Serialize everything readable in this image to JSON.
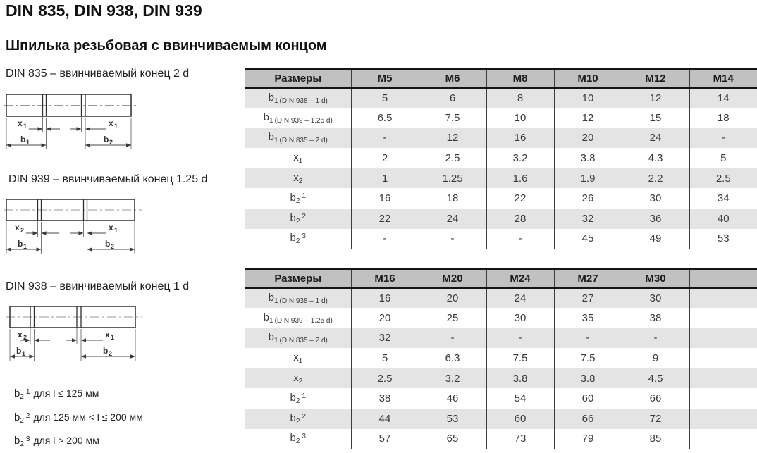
{
  "page": {
    "title": "DIN 835, DIN 938, DIN 939",
    "subtitle": "Шпилька резьбовая с ввинчиваемым концом"
  },
  "drawings": [
    {
      "caption": "DIN 835 – ввинчиваемый конец 2 d",
      "xl_main": "x",
      "xl_sub": "1",
      "xr_main": "x",
      "xr_sub": "1",
      "bl_main": "b",
      "bl_sub": "1",
      "br_main": "b",
      "br_sub": "2"
    },
    {
      "caption": "DIN 939 – ввинчиваемый конец 1.25 d",
      "xl_main": "x",
      "xl_sub": "2",
      "xr_main": "x",
      "xr_sub": "1",
      "bl_main": "b",
      "bl_sub": "1",
      "br_main": "b",
      "br_sub": "2"
    },
    {
      "caption": "DIN 938 – ввинчиваемый конец 1 d",
      "xl_main": "x",
      "xl_sub": "2",
      "xr_main": "x",
      "xr_sub": "1",
      "bl_main": "b",
      "bl_sub": "1",
      "br_main": "b",
      "br_sub": "2"
    }
  ],
  "tables": [
    {
      "header": [
        "Размеры",
        "M5",
        "M6",
        "M8",
        "M10",
        "M12",
        "M14"
      ],
      "rows": [
        {
          "label": {
            "base": "b",
            "sub": "1",
            "note": "(DIN 938 – 1 d)",
            "sup": ""
          },
          "values": [
            "5",
            "6",
            "8",
            "10",
            "12",
            "14"
          ]
        },
        {
          "label": {
            "base": "b",
            "sub": "1",
            "note": "(DIN 939 – 1.25 d)",
            "sup": ""
          },
          "values": [
            "6.5",
            "7.5",
            "10",
            "12",
            "15",
            "18"
          ]
        },
        {
          "label": {
            "base": "b",
            "sub": "1",
            "note": "(DIN 835 – 2 d)",
            "sup": ""
          },
          "values": [
            "-",
            "12",
            "16",
            "20",
            "24",
            "-"
          ]
        },
        {
          "label": {
            "base": "x",
            "sub": "1",
            "note": "",
            "sup": ""
          },
          "values": [
            "2",
            "2.5",
            "3.2",
            "3.8",
            "4.3",
            "5"
          ]
        },
        {
          "label": {
            "base": "x",
            "sub": "2",
            "note": "",
            "sup": ""
          },
          "values": [
            "1",
            "1.25",
            "1.6",
            "1.9",
            "2.2",
            "2.5"
          ]
        },
        {
          "label": {
            "base": "b",
            "sub": "2",
            "note": "",
            "sup": "1"
          },
          "values": [
            "16",
            "18",
            "22",
            "26",
            "30",
            "34"
          ]
        },
        {
          "label": {
            "base": "b",
            "sub": "2",
            "note": "",
            "sup": "2"
          },
          "values": [
            "22",
            "24",
            "28",
            "32",
            "36",
            "40"
          ]
        },
        {
          "label": {
            "base": "b",
            "sub": "2",
            "note": "",
            "sup": "3"
          },
          "values": [
            "-",
            "-",
            "-",
            "45",
            "49",
            "53"
          ]
        }
      ]
    },
    {
      "header": [
        "Размеры",
        "M16",
        "M20",
        "M24",
        "M27",
        "M30",
        ""
      ],
      "rows": [
        {
          "label": {
            "base": "b",
            "sub": "1",
            "note": "(DIN 938 – 1 d)",
            "sup": ""
          },
          "values": [
            "16",
            "20",
            "24",
            "27",
            "30",
            ""
          ]
        },
        {
          "label": {
            "base": "b",
            "sub": "1",
            "note": "(DIN 939 – 1.25 d)",
            "sup": ""
          },
          "values": [
            "20",
            "25",
            "30",
            "35",
            "38",
            ""
          ]
        },
        {
          "label": {
            "base": "b",
            "sub": "1",
            "note": "(DIN 835 – 2 d)",
            "sup": ""
          },
          "values": [
            "32",
            "-",
            "-",
            "-",
            "-",
            ""
          ]
        },
        {
          "label": {
            "base": "x",
            "sub": "1",
            "note": "",
            "sup": ""
          },
          "values": [
            "5",
            "6.3",
            "7.5",
            "7.5",
            "9",
            ""
          ]
        },
        {
          "label": {
            "base": "x",
            "sub": "2",
            "note": "",
            "sup": ""
          },
          "values": [
            "2.5",
            "3.2",
            "3.8",
            "3.8",
            "4.5",
            ""
          ]
        },
        {
          "label": {
            "base": "b",
            "sub": "2",
            "note": "",
            "sup": "1"
          },
          "values": [
            "38",
            "46",
            "54",
            "60",
            "66",
            ""
          ]
        },
        {
          "label": {
            "base": "b",
            "sub": "2",
            "note": "",
            "sup": "2"
          },
          "values": [
            "44",
            "53",
            "60",
            "66",
            "72",
            ""
          ]
        },
        {
          "label": {
            "base": "b",
            "sub": "2",
            "note": "",
            "sup": "3"
          },
          "values": [
            "57",
            "65",
            "73",
            "79",
            "85",
            ""
          ]
        }
      ]
    }
  ],
  "footnotes": [
    {
      "base": "b",
      "sub": "2",
      "sup": "1",
      "text": "для l ≤ 125 мм"
    },
    {
      "base": "b",
      "sub": "2",
      "sup": "2",
      "text": "для 125 мм < l ≤ 200 мм"
    },
    {
      "base": "b",
      "sub": "2",
      "sup": "3",
      "text": "для l > 200 мм"
    }
  ],
  "colors": {
    "header_bg": "#c1c1c1",
    "row_alt_bg": "#e4e4e4",
    "border": "#141414",
    "text": "#3a3a3a"
  }
}
